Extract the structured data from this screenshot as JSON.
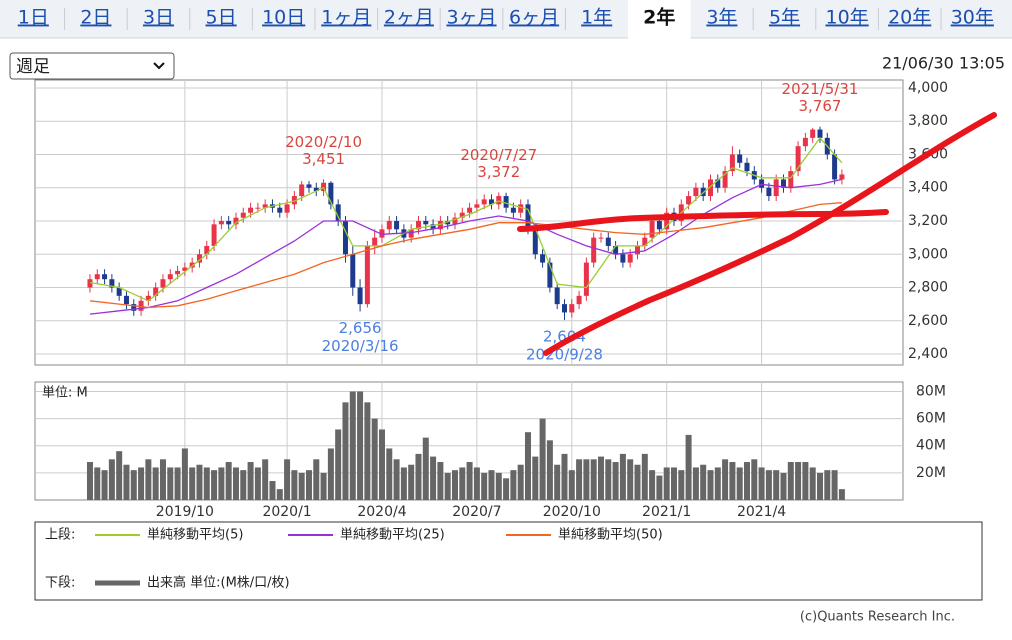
{
  "tabs": [
    {
      "label": "1日",
      "active": false
    },
    {
      "label": "2日",
      "active": false
    },
    {
      "label": "3日",
      "active": false
    },
    {
      "label": "5日",
      "active": false
    },
    {
      "label": "10日",
      "active": false
    },
    {
      "label": "1ヶ月",
      "active": false
    },
    {
      "label": "2ヶ月",
      "active": false
    },
    {
      "label": "3ヶ月",
      "active": false
    },
    {
      "label": "6ヶ月",
      "active": false
    },
    {
      "label": "1年",
      "active": false
    },
    {
      "label": "2年",
      "active": true
    },
    {
      "label": "3年",
      "active": false
    },
    {
      "label": "5年",
      "active": false
    },
    {
      "label": "10年",
      "active": false
    },
    {
      "label": "20年",
      "active": false
    },
    {
      "label": "30年",
      "active": false
    }
  ],
  "period_select": "週足",
  "timestamp": "21/06/30 13:05",
  "chart_data": [
    {
      "type": "candlestick",
      "xlim": [
        -7.53,
        111.37
      ],
      "xticks": [
        13,
        27,
        40,
        53,
        66,
        79,
        92
      ],
      "ylim": [
        2334,
        4048
      ],
      "yticks": [
        {
          "value": 2400,
          "label": "2,400"
        },
        {
          "value": 2600,
          "label": "2,600"
        },
        {
          "value": 2800,
          "label": "2,800"
        },
        {
          "value": 3000,
          "label": "3,000"
        },
        {
          "value": 3200,
          "label": "3,200"
        },
        {
          "value": 3400,
          "label": "3,400"
        },
        {
          "value": 3600,
          "label": "3,600"
        },
        {
          "value": 3800,
          "label": "3,800"
        },
        {
          "value": 4000,
          "label": "4,000"
        }
      ],
      "grid": true,
      "up_color": "#e8334a",
      "down_color": "#1d3b8c",
      "open": [
        2800,
        2850,
        2880,
        2850,
        2800,
        2750,
        2700,
        2660,
        2720,
        2750,
        2800,
        2850,
        2880,
        2900,
        2920,
        2950,
        3000,
        3050,
        3180,
        3200,
        3180,
        3220,
        3250,
        3280,
        3280,
        3300,
        3280,
        3250,
        3300,
        3350,
        3420,
        3400,
        3380,
        3430,
        3300,
        3200,
        3000,
        2800,
        2700,
        3050,
        3100,
        3150,
        3200,
        3150,
        3100,
        3150,
        3200,
        3180,
        3150,
        3200,
        3180,
        3220,
        3250,
        3280,
        3300,
        3330,
        3300,
        3350,
        3280,
        3250,
        3300,
        3150,
        3000,
        2950,
        2800,
        2700,
        2650,
        2700,
        2750,
        2950,
        3100,
        3100,
        3050,
        3000,
        2950,
        3000,
        3050,
        3100,
        3200,
        3150,
        3250,
        3200,
        3300,
        3350,
        3400,
        3350,
        3450,
        3400,
        3500,
        3600,
        3550,
        3500,
        3450,
        3400,
        3350,
        3450,
        3400,
        3500,
        3650,
        3700,
        3750,
        3700,
        3600,
        3450
      ],
      "high": [
        2880,
        2910,
        2910,
        2880,
        2830,
        2780,
        2730,
        2750,
        2780,
        2830,
        2880,
        2910,
        2930,
        2950,
        2980,
        3030,
        3080,
        3210,
        3230,
        3230,
        3250,
        3280,
        3310,
        3310,
        3330,
        3330,
        3310,
        3330,
        3380,
        3440,
        3440,
        3430,
        3451,
        3440,
        3330,
        3230,
        3050,
        2850,
        3080,
        3150,
        3180,
        3230,
        3230,
        3180,
        3180,
        3230,
        3230,
        3210,
        3230,
        3230,
        3250,
        3280,
        3310,
        3330,
        3360,
        3360,
        3372,
        3370,
        3310,
        3330,
        3330,
        3180,
        3030,
        2980,
        2830,
        2730,
        2730,
        2780,
        2980,
        3130,
        3130,
        3130,
        3080,
        3030,
        3030,
        3080,
        3130,
        3230,
        3230,
        3280,
        3280,
        3330,
        3380,
        3430,
        3430,
        3480,
        3480,
        3530,
        3650,
        3630,
        3580,
        3530,
        3480,
        3430,
        3480,
        3480,
        3530,
        3680,
        3730,
        3760,
        3767,
        3730,
        3630,
        3510
      ],
      "low": [
        2770,
        2820,
        2820,
        2770,
        2720,
        2670,
        2630,
        2630,
        2690,
        2720,
        2770,
        2820,
        2850,
        2870,
        2890,
        2920,
        2970,
        3020,
        3150,
        3150,
        3150,
        3190,
        3220,
        3250,
        3250,
        3250,
        3220,
        3220,
        3270,
        3320,
        3370,
        3350,
        3350,
        3270,
        3170,
        2950,
        2750,
        2656,
        2680,
        3000,
        3070,
        3120,
        3120,
        3070,
        3070,
        3120,
        3150,
        3120,
        3120,
        3150,
        3150,
        3190,
        3220,
        3250,
        3270,
        3270,
        3270,
        3250,
        3220,
        3220,
        3120,
        2970,
        2920,
        2770,
        2670,
        2604,
        2620,
        2670,
        2720,
        2920,
        3070,
        3020,
        2970,
        2920,
        2920,
        2970,
        3020,
        3070,
        3120,
        3120,
        3170,
        3170,
        3270,
        3320,
        3320,
        3320,
        3370,
        3370,
        3470,
        3520,
        3470,
        3420,
        3370,
        3320,
        3320,
        3370,
        3370,
        3470,
        3620,
        3670,
        3670,
        3570,
        3420,
        3420
      ],
      "close": [
        2850,
        2880,
        2850,
        2800,
        2750,
        2700,
        2660,
        2720,
        2750,
        2800,
        2850,
        2880,
        2900,
        2920,
        2950,
        3000,
        3050,
        3180,
        3200,
        3180,
        3220,
        3250,
        3280,
        3280,
        3300,
        3280,
        3250,
        3300,
        3350,
        3420,
        3400,
        3380,
        3430,
        3300,
        3200,
        3000,
        2800,
        2700,
        3050,
        3100,
        3150,
        3200,
        3150,
        3100,
        3150,
        3200,
        3180,
        3150,
        3200,
        3180,
        3220,
        3250,
        3280,
        3300,
        3330,
        3300,
        3350,
        3280,
        3250,
        3300,
        3150,
        3000,
        2950,
        2800,
        2700,
        2650,
        2700,
        2750,
        2950,
        3100,
        3100,
        3050,
        3000,
        2950,
        3000,
        3050,
        3100,
        3200,
        3150,
        3250,
        3200,
        3300,
        3350,
        3400,
        3350,
        3450,
        3400,
        3500,
        3600,
        3550,
        3500,
        3450,
        3400,
        3350,
        3450,
        3400,
        3500,
        3650,
        3700,
        3750,
        3700,
        3600,
        3450,
        3480
      ],
      "series": [
        {
          "name": "単純移動平均(5)",
          "color": "#9acd32",
          "x": [
            0,
            4,
            8,
            12,
            16,
            20,
            24,
            28,
            32,
            36,
            40,
            44,
            48,
            52,
            56,
            60,
            64,
            68,
            72,
            76,
            80,
            84,
            88,
            92,
            96,
            100,
            103
          ],
          "values": [
            2830,
            2800,
            2720,
            2860,
            3000,
            3190,
            3280,
            3320,
            3400,
            3050,
            3050,
            3150,
            3180,
            3240,
            3320,
            3270,
            2820,
            2800,
            3050,
            3050,
            3210,
            3370,
            3520,
            3460,
            3460,
            3700,
            3550
          ]
        },
        {
          "name": "単純移動平均(25)",
          "color": "#9b30d9",
          "x": [
            0,
            4,
            8,
            12,
            16,
            20,
            24,
            28,
            32,
            36,
            40,
            44,
            48,
            52,
            56,
            60,
            64,
            68,
            72,
            76,
            80,
            84,
            88,
            92,
            96,
            100,
            103
          ],
          "values": [
            2640,
            2660,
            2680,
            2720,
            2800,
            2880,
            2980,
            3080,
            3200,
            3200,
            3120,
            3130,
            3160,
            3200,
            3230,
            3200,
            3120,
            3050,
            3000,
            3020,
            3120,
            3240,
            3340,
            3420,
            3400,
            3420,
            3450
          ]
        },
        {
          "name": "単純移動平均(50)",
          "color": "#f26522",
          "x": [
            0,
            4,
            8,
            12,
            16,
            20,
            24,
            28,
            32,
            36,
            40,
            44,
            48,
            52,
            56,
            60,
            64,
            68,
            72,
            76,
            80,
            84,
            88,
            92,
            96,
            100,
            103
          ],
          "values": [
            2720,
            2700,
            2680,
            2690,
            2730,
            2780,
            2830,
            2880,
            2950,
            3000,
            3050,
            3090,
            3120,
            3150,
            3190,
            3190,
            3170,
            3150,
            3130,
            3120,
            3140,
            3160,
            3190,
            3220,
            3260,
            3300,
            3310
          ]
        }
      ],
      "annotations": [
        {
          "x": 32,
          "date": "2020/2/10",
          "value": 3451,
          "value_label": "3,451",
          "position": "above"
        },
        {
          "x": 56,
          "date": "2020/7/27",
          "value": 3372,
          "value_label": "3,372",
          "position": "above"
        },
        {
          "x": 100,
          "date": "2021/5/31",
          "value": 3767,
          "value_label": "3,767",
          "position": "above"
        },
        {
          "x": 37,
          "date": "2020/3/16",
          "value": 2656,
          "value_label": "2,656",
          "position": "below"
        },
        {
          "x": 65,
          "date": "2020/9/28",
          "value": 2604,
          "value_label": "2,604",
          "position": "below"
        }
      ]
    },
    {
      "type": "bar",
      "name": "出来高 単位:(M株/口/枚)",
      "unit_label": "単位: M",
      "color": "#666666",
      "xlim": [
        -7.53,
        111.37
      ],
      "xticks": [
        {
          "value": 13,
          "label": "2019/10"
        },
        {
          "value": 27,
          "label": "2020/1"
        },
        {
          "value": 40,
          "label": "2020/4"
        },
        {
          "value": 53,
          "label": "2020/7"
        },
        {
          "value": 66,
          "label": "2020/10"
        },
        {
          "value": 79,
          "label": "2021/1"
        },
        {
          "value": 92,
          "label": "2021/4"
        }
      ],
      "ylim": [
        0,
        87
      ],
      "yticks": [
        {
          "value": 20,
          "label": "20M"
        },
        {
          "value": 40,
          "label": "40M"
        },
        {
          "value": 60,
          "label": "60M"
        },
        {
          "value": 80,
          "label": "80M"
        }
      ],
      "grid": true,
      "values": [
        28,
        24,
        22,
        30,
        36,
        26,
        22,
        24,
        30,
        24,
        30,
        24,
        24,
        38,
        24,
        26,
        24,
        22,
        24,
        28,
        24,
        22,
        28,
        24,
        30,
        14,
        8,
        30,
        22,
        20,
        22,
        30,
        20,
        38,
        52,
        72,
        80,
        80,
        72,
        60,
        52,
        38,
        30,
        24,
        26,
        34,
        46,
        32,
        28,
        20,
        22,
        24,
        28,
        24,
        20,
        22,
        20,
        16,
        22,
        26,
        50,
        32,
        60,
        44,
        26,
        34,
        22,
        30,
        30,
        30,
        32,
        30,
        28,
        34,
        30,
        26,
        34,
        22,
        18,
        24,
        24,
        22,
        48,
        24,
        26,
        22,
        24,
        30,
        28,
        24,
        28,
        30,
        24,
        22,
        22,
        20,
        28,
        28,
        28,
        24,
        20,
        22,
        22,
        8
      ]
    }
  ],
  "legend": {
    "upper": "上段:",
    "lower": "下段:"
  },
  "copyright": "(c)Quants Research Inc."
}
